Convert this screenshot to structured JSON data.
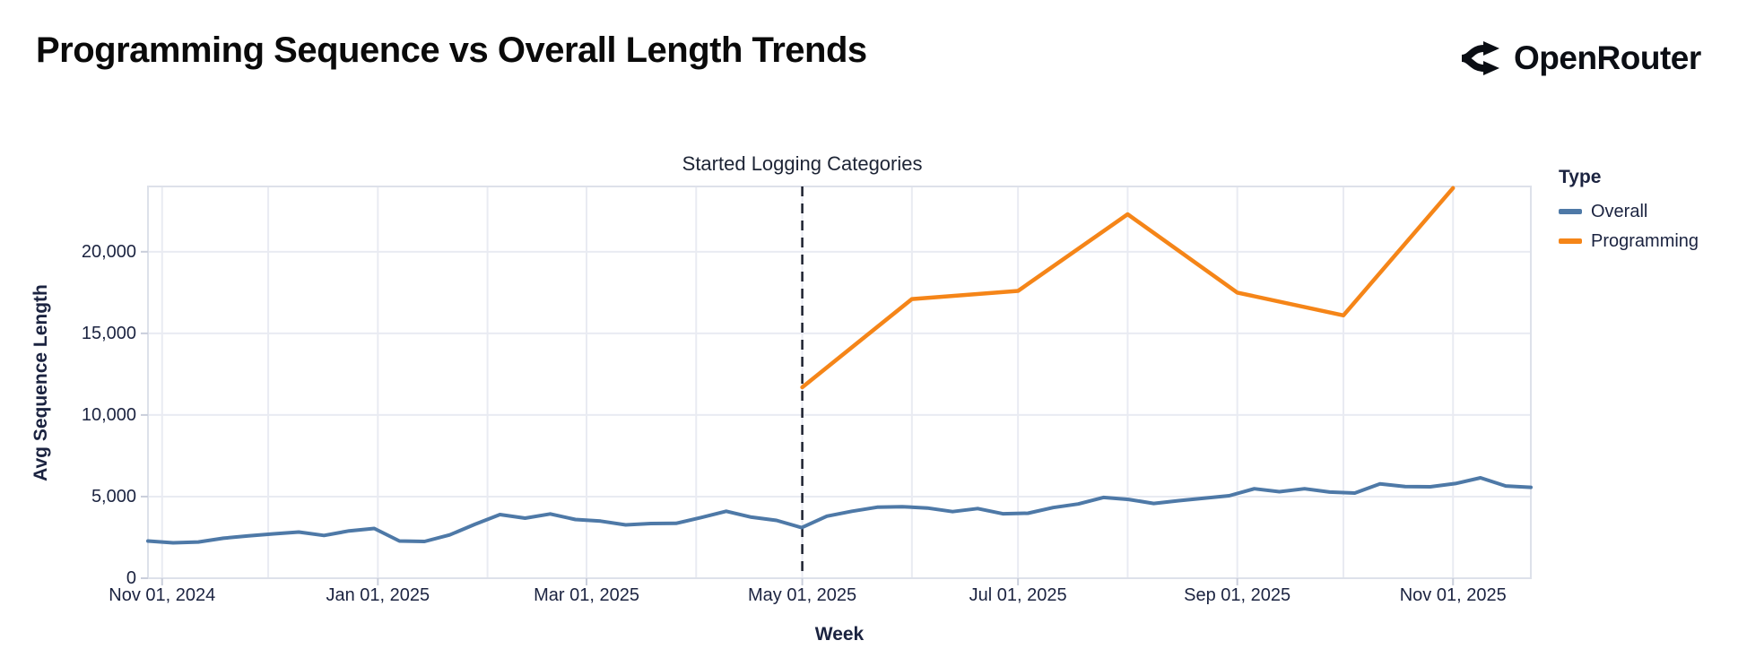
{
  "header": {
    "brand": "OpenRouter"
  },
  "chart_data": {
    "type": "line",
    "title": "Programming Sequence vs Overall Length Trends",
    "xlabel": "Week",
    "ylabel": "Avg Sequence Length",
    "annotation": {
      "label": "Started Logging Categories",
      "day": 185
    },
    "x_axis": {
      "domain_days": [
        0,
        391
      ],
      "domain_note": "day 0 = Oct 28, 2024; day 391 = Nov 23, 2025",
      "month_gridline_days": [
        4,
        34,
        65,
        96,
        124,
        155,
        185,
        216,
        246,
        277,
        308,
        338,
        369
      ],
      "tick_labels": [
        {
          "label": "Nov 01, 2024",
          "day": 4
        },
        {
          "label": "Jan 01, 2025",
          "day": 65
        },
        {
          "label": "Mar 01, 2025",
          "day": 124
        },
        {
          "label": "May 01, 2025",
          "day": 185
        },
        {
          "label": "Jul 01, 2025",
          "day": 246
        },
        {
          "label": "Sep 01, 2025",
          "day": 308
        },
        {
          "label": "Nov 01, 2025",
          "day": 369
        }
      ]
    },
    "y_axis": {
      "lim": [
        0,
        24000
      ],
      "ticks": [
        {
          "label": "0",
          "value": 0
        },
        {
          "label": "5,000",
          "value": 5000
        },
        {
          "label": "10,000",
          "value": 10000
        },
        {
          "label": "15,000",
          "value": 15000
        },
        {
          "label": "20,000",
          "value": 20000
        }
      ]
    },
    "legend": {
      "title": "Type",
      "items": [
        {
          "label": "Overall",
          "color": "#4e79a7"
        },
        {
          "label": "Programming",
          "color": "#f58518"
        }
      ]
    },
    "series": [
      {
        "name": "Overall",
        "color": "#4e79a7",
        "width": 4,
        "start_day": 0,
        "end_day": 391,
        "values": [
          2280,
          2170,
          2220,
          2450,
          2600,
          2720,
          2830,
          2620,
          2900,
          3050,
          2280,
          2250,
          2650,
          3300,
          3900,
          3680,
          3940,
          3600,
          3500,
          3270,
          3350,
          3360,
          3720,
          4100,
          3740,
          3540,
          3100,
          3800,
          4100,
          4350,
          4380,
          4300,
          4080,
          4270,
          3950,
          3980,
          4330,
          4550,
          4950,
          4830,
          4580,
          4750,
          4900,
          5050,
          5480,
          5300,
          5480,
          5280,
          5220,
          5780,
          5620,
          5600,
          5800,
          6150,
          5650,
          5570
        ]
      },
      {
        "name": "Programming",
        "color": "#f58518",
        "width": 4.5,
        "days": [
          185,
          216,
          246,
          277,
          308,
          338,
          369
        ],
        "values": [
          11700,
          17100,
          17600,
          22300,
          17500,
          16100,
          23900
        ]
      }
    ],
    "colors": {
      "grid": "#e9ebf2",
      "border": "#dde1ea",
      "tick": "#c9cedb",
      "annotation_line": "#1b1f2e",
      "text": "#1b2340",
      "title": "#0a0a0a"
    }
  }
}
